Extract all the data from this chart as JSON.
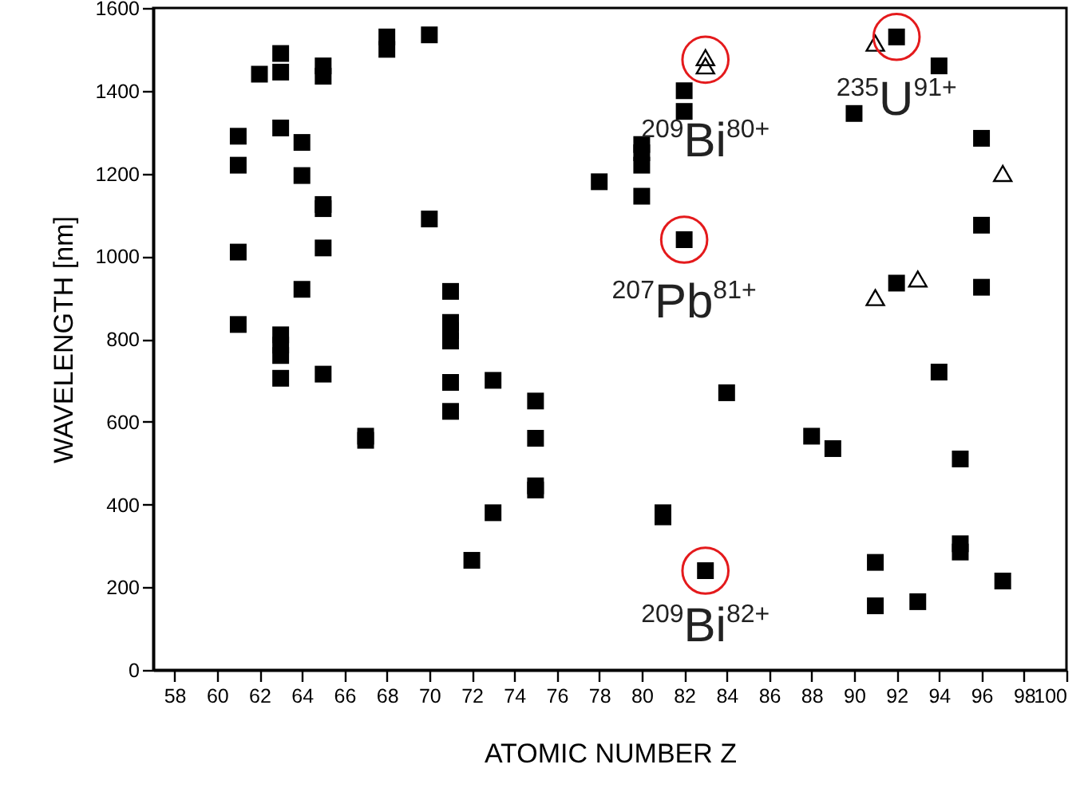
{
  "chart_data": {
    "type": "scatter",
    "xlabel": "ATOMIC NUMBER Z",
    "ylabel": "WAVELENGTH [nm]",
    "xlim": [
      57,
      100
    ],
    "ylim": [
      0,
      1600
    ],
    "xticks": [
      58,
      60,
      62,
      64,
      66,
      68,
      70,
      72,
      74,
      76,
      78,
      80,
      82,
      84,
      86,
      88,
      90,
      92,
      94,
      96,
      98,
      100
    ],
    "yticks": [
      0,
      200,
      400,
      600,
      800,
      1000,
      1200,
      1400,
      1600
    ],
    "grid": false,
    "series": [
      {
        "color": "#000000",
        "marker": "square",
        "x": [
          61,
          61,
          61,
          61,
          62,
          63,
          63,
          63,
          63,
          63,
          63,
          63,
          64,
          64,
          64,
          65,
          65,
          65,
          65,
          65,
          65,
          67,
          67,
          68,
          68,
          70,
          70,
          71,
          71,
          71,
          71,
          71,
          71,
          72,
          73,
          73,
          75,
          75,
          75,
          75,
          78,
          80,
          80,
          80,
          80,
          81,
          81,
          82,
          82,
          82,
          83,
          84,
          88,
          89,
          90,
          91,
          91,
          92,
          92,
          93,
          94,
          94,
          95,
          95,
          95,
          96,
          96,
          96,
          97
        ],
        "values": [
          1290,
          1220,
          1010,
          835,
          1440,
          1490,
          1445,
          1310,
          810,
          785,
          760,
          705,
          1275,
          1195,
          920,
          1460,
          1435,
          1125,
          1115,
          1020,
          715,
          565,
          555,
          1530,
          1500,
          1535,
          1090,
          915,
          840,
          820,
          795,
          695,
          625,
          265,
          700,
          380,
          650,
          560,
          445,
          435,
          1180,
          1270,
          1250,
          1220,
          1145,
          380,
          370,
          1400,
          1350,
          1040,
          240,
          670,
          565,
          535,
          1345,
          260,
          155,
          1530,
          935,
          165,
          1460,
          720,
          510,
          305,
          285,
          1285,
          1075,
          925,
          215
        ]
      },
      {
        "color": "#000000",
        "marker": "triangle",
        "x": [
          83,
          83,
          91,
          91,
          93,
          97
        ],
        "values": [
          1480,
          1460,
          1515,
          900,
          945,
          1200
        ]
      }
    ],
    "annotations": [
      {
        "text": "$^{209}$Bi$^{80+}$",
        "x": 83,
        "y": 1475
      },
      {
        "text": "$^{207}$Pb$^{81+}$",
        "x": 82,
        "y": 1040
      },
      {
        "text": "$^{209}$Bi$^{82+}$",
        "x": 83,
        "y": 240
      },
      {
        "text": "$^{235}$U$^{91+}$",
        "x": 92,
        "y": 1530
      }
    ]
  }
}
